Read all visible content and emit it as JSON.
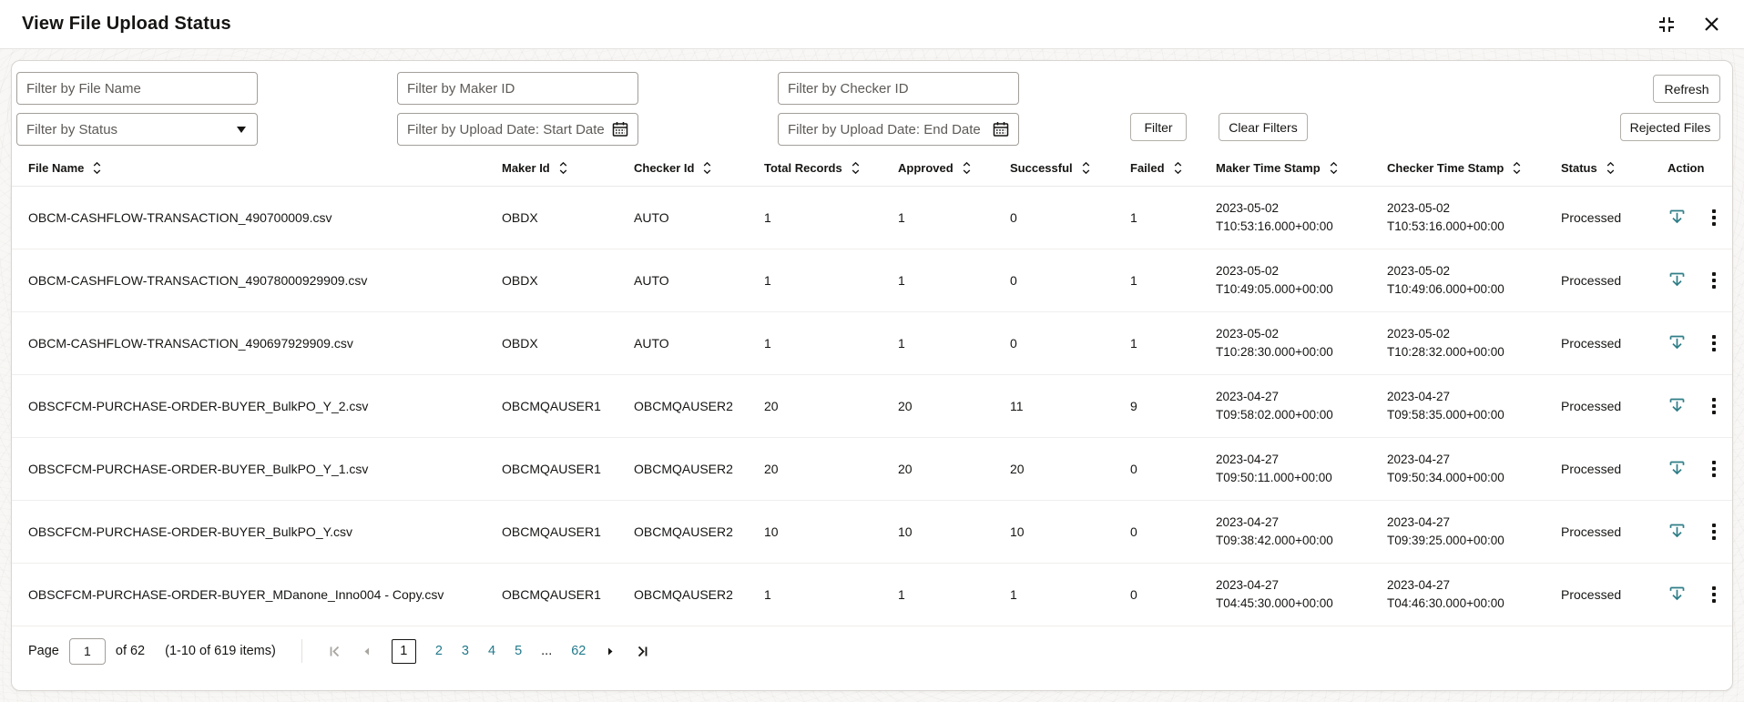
{
  "header": {
    "title": "View File Upload Status",
    "icons": {
      "expand": "expand-icon",
      "close": "close-icon"
    }
  },
  "filters": {
    "file_name_placeholder": "Filter by File Name",
    "status_placeholder": "Filter by Status",
    "maker_id_placeholder": "Filter by Maker ID",
    "start_date_placeholder": "Filter by Upload Date: Start Date",
    "checker_id_placeholder": "Filter by Checker ID",
    "end_date_placeholder": "Filter by Upload Date: End Date",
    "filter_button": "Filter",
    "clear_filters_button": "Clear Filters",
    "refresh_button": "Refresh",
    "rejected_files_button": "Rejected Files"
  },
  "table": {
    "columns": [
      {
        "label": "File Name",
        "sortable": true
      },
      {
        "label": "Maker Id",
        "sortable": true
      },
      {
        "label": "Checker Id",
        "sortable": true
      },
      {
        "label": "Total Records",
        "sortable": true
      },
      {
        "label": "Approved",
        "sortable": true
      },
      {
        "label": "Successful",
        "sortable": true
      },
      {
        "label": "Failed",
        "sortable": true
      },
      {
        "label": "Maker Time Stamp",
        "sortable": true
      },
      {
        "label": "Checker Time Stamp",
        "sortable": true
      },
      {
        "label": "Status",
        "sortable": true
      },
      {
        "label": "Action",
        "sortable": false
      }
    ],
    "rows": [
      {
        "file_name": "OBCM-CASHFLOW-TRANSACTION_490700009.csv",
        "maker_id": "OBDX",
        "checker_id": "AUTO",
        "total_records": "1",
        "approved": "1",
        "successful": "0",
        "failed": "1",
        "maker_time_stamp": [
          "2023-05-02",
          "T10:53:16.000+00:00"
        ],
        "checker_time_stamp": [
          "2023-05-02",
          "T10:53:16.000+00:00"
        ],
        "status": "Processed"
      },
      {
        "file_name": "OBCM-CASHFLOW-TRANSACTION_49078000929909.csv",
        "maker_id": "OBDX",
        "checker_id": "AUTO",
        "total_records": "1",
        "approved": "1",
        "successful": "0",
        "failed": "1",
        "maker_time_stamp": [
          "2023-05-02",
          "T10:49:05.000+00:00"
        ],
        "checker_time_stamp": [
          "2023-05-02",
          "T10:49:06.000+00:00"
        ],
        "status": "Processed"
      },
      {
        "file_name": "OBCM-CASHFLOW-TRANSACTION_490697929909.csv",
        "maker_id": "OBDX",
        "checker_id": "AUTO",
        "total_records": "1",
        "approved": "1",
        "successful": "0",
        "failed": "1",
        "maker_time_stamp": [
          "2023-05-02",
          "T10:28:30.000+00:00"
        ],
        "checker_time_stamp": [
          "2023-05-02",
          "T10:28:32.000+00:00"
        ],
        "status": "Processed"
      },
      {
        "file_name": "OBSCFCM-PURCHASE-ORDER-BUYER_BulkPO_Y_2.csv",
        "maker_id": "OBCMQAUSER1",
        "checker_id": "OBCMQAUSER2",
        "total_records": "20",
        "approved": "20",
        "successful": "11",
        "failed": "9",
        "maker_time_stamp": [
          "2023-04-27",
          "T09:58:02.000+00:00"
        ],
        "checker_time_stamp": [
          "2023-04-27",
          "T09:58:35.000+00:00"
        ],
        "status": "Processed"
      },
      {
        "file_name": "OBSCFCM-PURCHASE-ORDER-BUYER_BulkPO_Y_1.csv",
        "maker_id": "OBCMQAUSER1",
        "checker_id": "OBCMQAUSER2",
        "total_records": "20",
        "approved": "20",
        "successful": "20",
        "failed": "0",
        "maker_time_stamp": [
          "2023-04-27",
          "T09:50:11.000+00:00"
        ],
        "checker_time_stamp": [
          "2023-04-27",
          "T09:50:34.000+00:00"
        ],
        "status": "Processed"
      },
      {
        "file_name": "OBSCFCM-PURCHASE-ORDER-BUYER_BulkPO_Y.csv",
        "maker_id": "OBCMQAUSER1",
        "checker_id": "OBCMQAUSER2",
        "total_records": "10",
        "approved": "10",
        "successful": "10",
        "failed": "0",
        "maker_time_stamp": [
          "2023-04-27",
          "T09:38:42.000+00:00"
        ],
        "checker_time_stamp": [
          "2023-04-27",
          "T09:39:25.000+00:00"
        ],
        "status": "Processed"
      },
      {
        "file_name": "OBSCFCM-PURCHASE-ORDER-BUYER_MDanone_Inno004 - Copy.csv",
        "maker_id": "OBCMQAUSER1",
        "checker_id": "OBCMQAUSER2",
        "total_records": "1",
        "approved": "1",
        "successful": "1",
        "failed": "0",
        "maker_time_stamp": [
          "2023-04-27",
          "T04:45:30.000+00:00"
        ],
        "checker_time_stamp": [
          "2023-04-27",
          "T04:46:30.000+00:00"
        ],
        "status": "Processed"
      }
    ]
  },
  "pagination": {
    "page_label": "Page",
    "page_value": "1",
    "of_label": "of 62",
    "items_label": "(1-10 of 619 items)",
    "pages": [
      {
        "label": "1",
        "current": true
      },
      {
        "label": "2"
      },
      {
        "label": "3"
      },
      {
        "label": "4"
      },
      {
        "label": "5"
      },
      {
        "label": "...",
        "ellipsis": true
      },
      {
        "label": "62"
      }
    ]
  },
  "colors": {
    "accent_teal": "#227a8c",
    "download_icon": "#2e7d87",
    "text": "#161513",
    "disabled_arrow": "#a9a5a0"
  }
}
